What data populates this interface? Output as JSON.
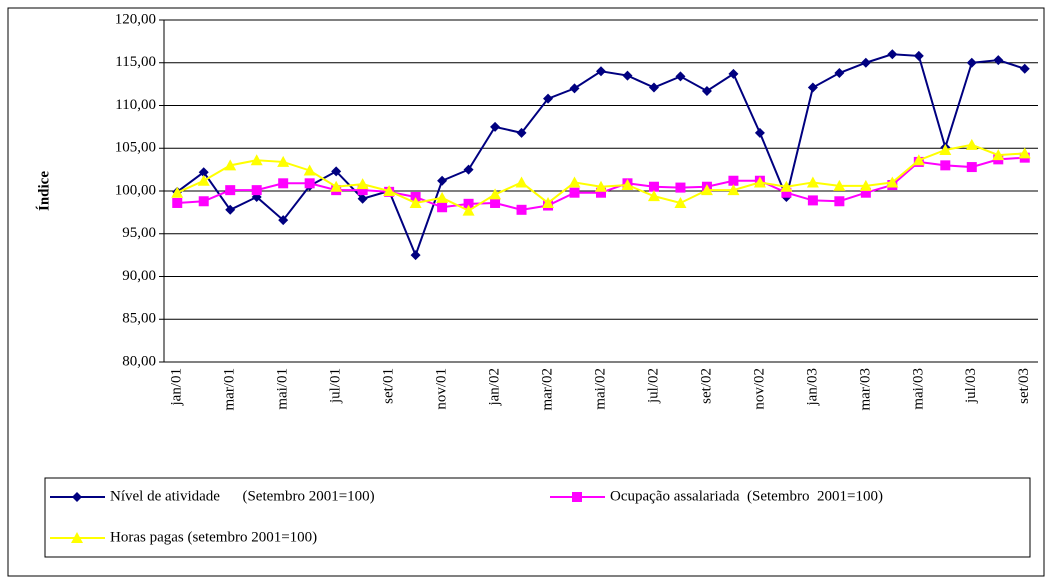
{
  "chart_data": {
    "type": "line",
    "y_label": "Índice",
    "categories": [
      "jan/01",
      null,
      "mar/01",
      null,
      "mai/01",
      null,
      "jul/01",
      null,
      "set/01",
      null,
      "nov/01",
      null,
      "jan/02",
      null,
      "mar/02",
      null,
      "mai/02",
      null,
      "jul/02",
      null,
      "set/02",
      null,
      "nov/02",
      null,
      "jan/03",
      null,
      "mar/03",
      null,
      "mai/03",
      null,
      "jul/03",
      null,
      "set/03"
    ],
    "series": [
      {
        "name": "Nível de atividade      (Setembro 2001=100)",
        "color": "#000080",
        "marker": "diamond",
        "values": [
          99.9,
          102.2,
          97.8,
          99.3,
          96.6,
          100.6,
          102.3,
          99.1,
          100,
          92.5,
          101.2,
          102.5,
          107.5,
          106.8,
          110.8,
          112.0,
          114.0,
          113.5,
          112.1,
          113.4,
          111.7,
          113.7,
          106.8,
          99.3,
          112.1,
          113.8,
          115.0,
          116.0,
          115.8,
          105.1,
          115.0,
          115.3,
          114.3
        ]
      },
      {
        "name": "Ocupação assalariada  (Setembro  2001=100)",
        "color": "#FF00FF",
        "marker": "square",
        "values": [
          98.6,
          98.8,
          100.1,
          100.1,
          100.9,
          100.9,
          100.1,
          100.1,
          99.9,
          99.3,
          98.1,
          98.5,
          98.6,
          97.8,
          98.3,
          99.8,
          99.8,
          100.9,
          100.5,
          100.4,
          100.5,
          101.2,
          101.2,
          99.8,
          98.9,
          98.8,
          99.8,
          100.7,
          103.4,
          103.0,
          102.8,
          103.7,
          103.9
        ]
      },
      {
        "name": "Horas pagas (setembro 2001=100)",
        "color": "#FFFF00",
        "marker": "triangle",
        "values": [
          99.8,
          101.2,
          103.0,
          103.6,
          103.4,
          102.4,
          100.5,
          100.8,
          100,
          98.6,
          99.2,
          97.7,
          99.6,
          101,
          98.6,
          101,
          100.5,
          100.7,
          99.4,
          98.6,
          100.1,
          100.1,
          101,
          100.5,
          101,
          100.6,
          100.6,
          101,
          103.6,
          104.8,
          105.4,
          104.2,
          104.4
        ]
      }
    ],
    "ylim": [
      80,
      120
    ],
    "yticks": [
      {
        "value": 80,
        "label": "80,00"
      },
      {
        "value": 85,
        "label": "85,00"
      },
      {
        "value": 90,
        "label": "90,00"
      },
      {
        "value": 95,
        "label": "95,00"
      },
      {
        "value": 100,
        "label": "100,00"
      },
      {
        "value": 105,
        "label": "105,00"
      },
      {
        "value": 110,
        "label": "110,00"
      },
      {
        "value": 115,
        "label": "115,00"
      },
      {
        "value": 120,
        "label": "120,00"
      }
    ],
    "grid": true,
    "legend": "bottom"
  }
}
